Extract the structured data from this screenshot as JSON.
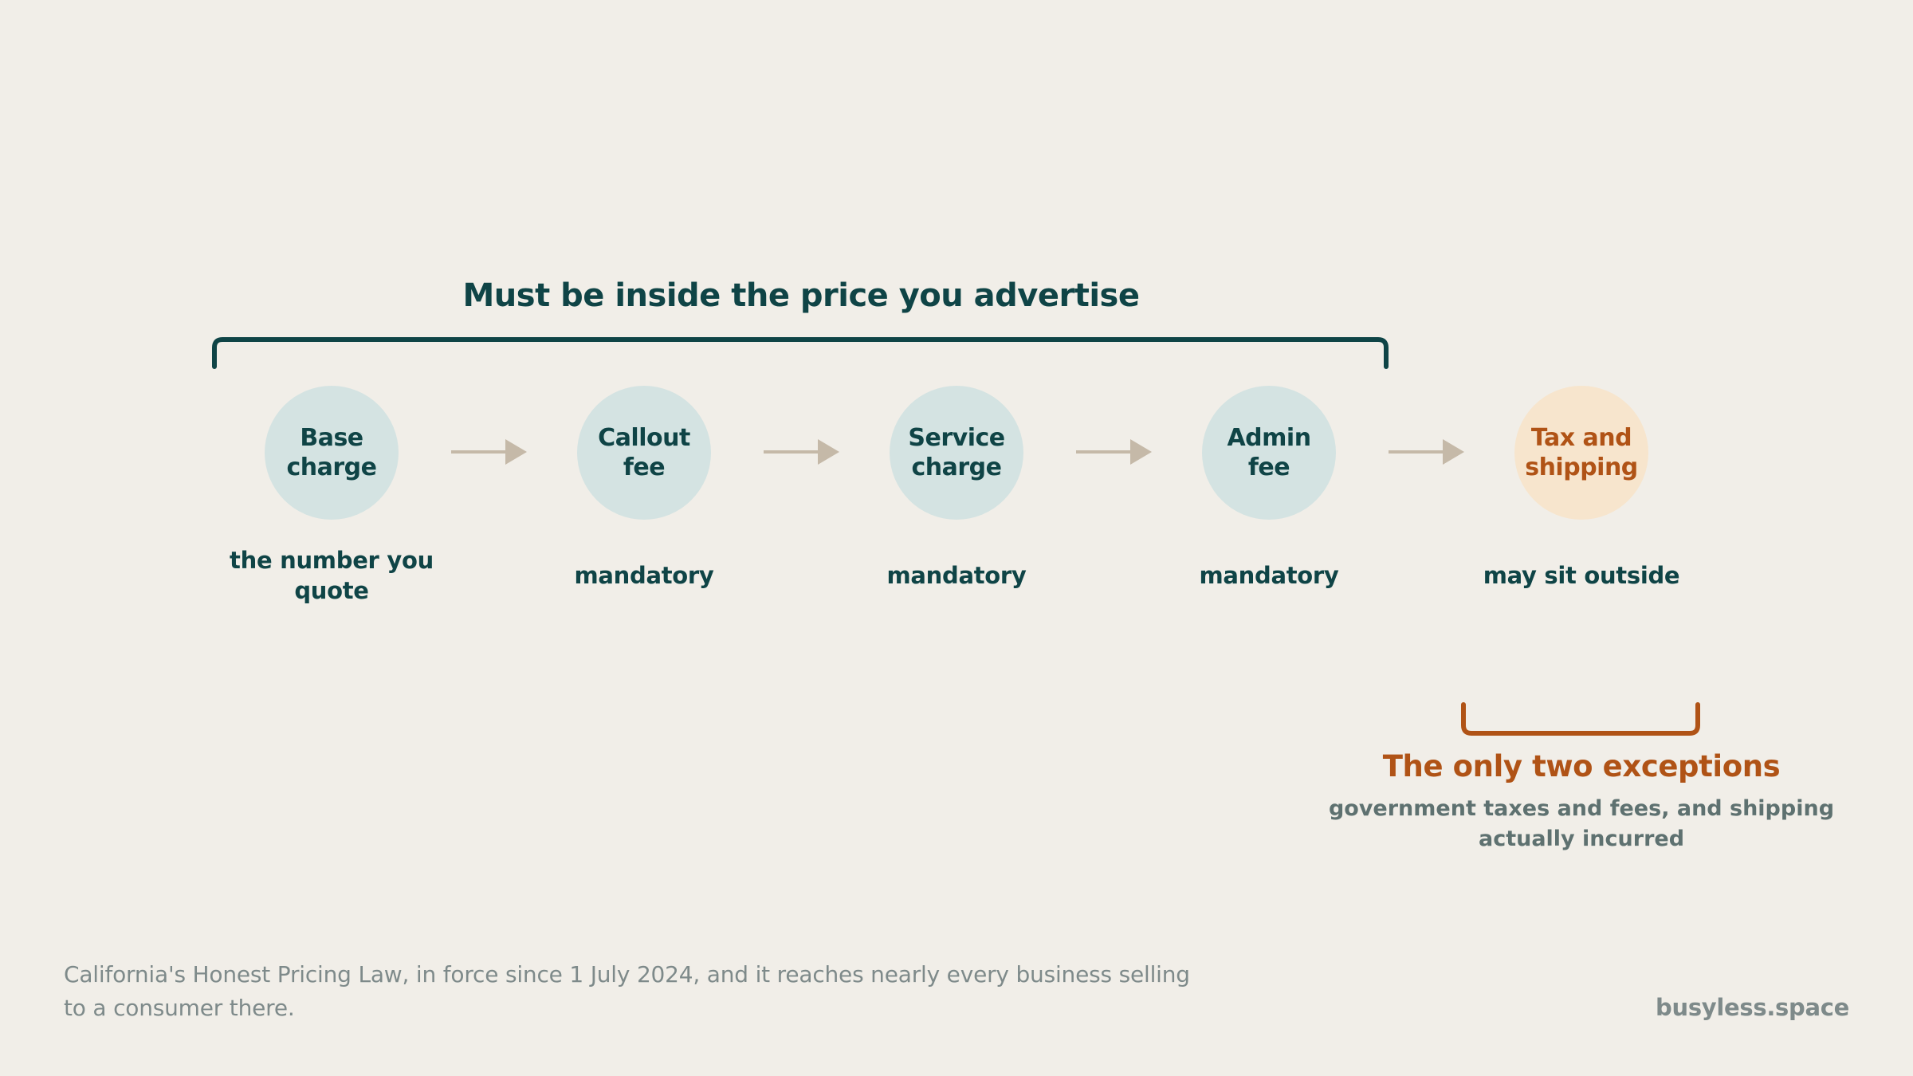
{
  "brace_top": {
    "title": "Must be inside the price you advertise"
  },
  "nodes": [
    {
      "label": "Base\ncharge",
      "caption": "the number you quote",
      "tone": "teal"
    },
    {
      "label": "Callout\nfee",
      "caption": "mandatory",
      "tone": "teal"
    },
    {
      "label": "Service\ncharge",
      "caption": "mandatory",
      "tone": "teal"
    },
    {
      "label": "Admin\nfee",
      "caption": "mandatory",
      "tone": "teal"
    },
    {
      "label": "Tax and\nshipping",
      "caption": "may sit outside",
      "tone": "peach"
    }
  ],
  "brace_bottom": {
    "title": "The only two exceptions",
    "subtitle": "government taxes and fees, and shipping actually incurred"
  },
  "footer": {
    "note": "California's Honest Pricing Law, in force since 1 July 2024, and it reaches nearly every business selling to a consumer there.",
    "brand": "busyless.space"
  },
  "colors": {
    "background": "#f1eee8",
    "primary": "#0f4446",
    "accent": "#b05316",
    "node_fill": "#d4e3e2",
    "exception_fill": "#f7e5cd",
    "arrow": "#c5b9a8",
    "muted": "#7e8a8a"
  }
}
